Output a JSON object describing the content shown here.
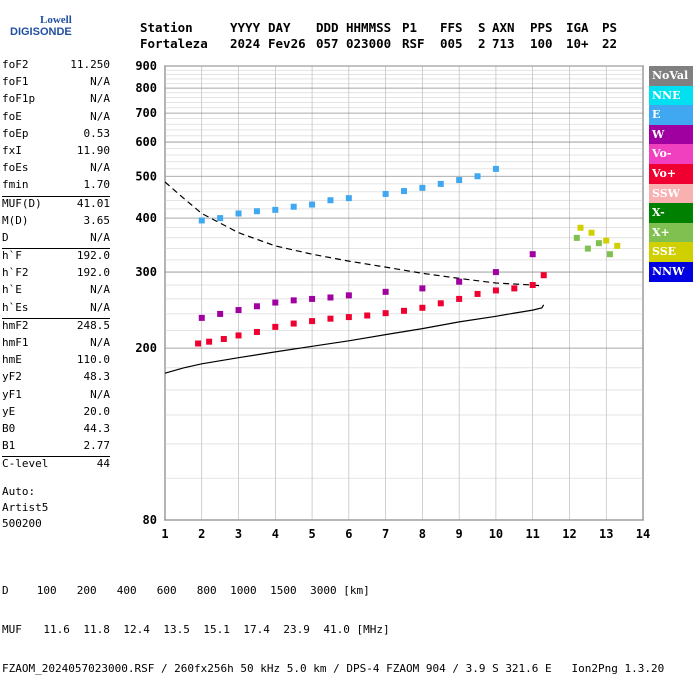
{
  "logo": {
    "line1": "Lowell",
    "line2": "DIGISONDE"
  },
  "header": {
    "labels": [
      "Station",
      "YYYY",
      "DAY",
      "DDD",
      "HHMMSS",
      "P1",
      "FFS",
      "S",
      "AXN",
      "PPS",
      "IGA",
      "PS"
    ],
    "values": [
      "Fortaleza",
      "2024",
      "Fev26",
      "057",
      "023000",
      "RSF",
      "005",
      "2",
      "713",
      "100",
      "10+",
      "22"
    ]
  },
  "params": [
    [
      {
        "k": "foF2",
        "v": "11.250"
      },
      {
        "k": "foF1",
        "v": "N/A"
      },
      {
        "k": "foF1p",
        "v": "N/A"
      },
      {
        "k": "foE",
        "v": "N/A"
      },
      {
        "k": "foEp",
        "v": "0.53"
      },
      {
        "k": "fxI",
        "v": "11.90"
      },
      {
        "k": "foEs",
        "v": "N/A"
      },
      {
        "k": "fmin",
        "v": "1.70"
      }
    ],
    [
      {
        "k": "MUF(D)",
        "v": "41.01"
      },
      {
        "k": "M(D)",
        "v": "3.65"
      },
      {
        "k": "D",
        "v": "N/A"
      }
    ],
    [
      {
        "k": "h`F",
        "v": "192.0"
      },
      {
        "k": "h`F2",
        "v": "192.0"
      },
      {
        "k": "h`E",
        "v": "N/A"
      },
      {
        "k": "h`Es",
        "v": "N/A"
      }
    ],
    [
      {
        "k": "hmF2",
        "v": "248.5"
      },
      {
        "k": "hmF1",
        "v": "N/A"
      },
      {
        "k": "hmE",
        "v": "110.0"
      },
      {
        "k": "yF2",
        "v": "48.3"
      },
      {
        "k": "yF1",
        "v": "N/A"
      },
      {
        "k": "yE",
        "v": "20.0"
      },
      {
        "k": "B0",
        "v": "44.3"
      },
      {
        "k": "B1",
        "v": "2.77"
      }
    ],
    [
      {
        "k": "C-level",
        "v": "44"
      }
    ]
  ],
  "autoscale": {
    "line1": "Auto:",
    "line2": "Artist5",
    "line3": "500200"
  },
  "legend": [
    {
      "label": "NoVal",
      "color": "#808080"
    },
    {
      "label": "NNE",
      "color": "#00e0f0"
    },
    {
      "label": "E",
      "color": "#40a8f0"
    },
    {
      "label": "W",
      "color": "#a000a0"
    },
    {
      "label": "Vo-",
      "color": "#f040c0"
    },
    {
      "label": "Vo+",
      "color": "#f00030"
    },
    {
      "label": "SSW",
      "color": "#f8b0b0"
    },
    {
      "label": "X-",
      "color": "#008000"
    },
    {
      "label": "X+",
      "color": "#80c050"
    },
    {
      "label": "SSE",
      "color": "#d0d000"
    },
    {
      "label": "NNW",
      "color": "#0000e0"
    }
  ],
  "chart_data": {
    "type": "scatter",
    "xlabel": "",
    "ylabel": "",
    "xlim": [
      1,
      14
    ],
    "ylim": [
      80,
      900
    ],
    "y_scale": "log",
    "x_ticks": [
      "1",
      "2",
      "3",
      "4",
      "5",
      "6",
      "7",
      "8",
      "9",
      "10",
      "11",
      "12",
      "13",
      "14"
    ],
    "y_ticks": [
      "80",
      "200",
      "300",
      "400",
      "500",
      "600",
      "700",
      "800",
      "900"
    ],
    "grid": true,
    "series": [
      {
        "name": "Vo+",
        "color": "#f00030",
        "x": [
          1.9,
          2.2,
          2.6,
          3.0,
          3.5,
          4.0,
          4.5,
          5.0,
          5.5,
          6.0,
          6.5,
          7.0,
          7.5,
          8.0,
          8.5,
          9.0,
          9.5,
          10.0,
          10.5,
          11.0,
          11.3
        ],
        "y": [
          205,
          207,
          210,
          214,
          218,
          224,
          228,
          231,
          234,
          236,
          238,
          241,
          244,
          248,
          254,
          260,
          267,
          272,
          275,
          280,
          295
        ]
      },
      {
        "name": "W",
        "color": "#a000a0",
        "x": [
          2.0,
          2.5,
          3.0,
          3.5,
          4.0,
          4.5,
          5.0,
          5.5,
          6.0,
          7.0,
          8.0,
          9.0,
          10.0,
          11.0
        ],
        "y": [
          235,
          240,
          245,
          250,
          255,
          258,
          260,
          262,
          265,
          270,
          275,
          285,
          300,
          330
        ]
      },
      {
        "name": "E",
        "color": "#40a8f0",
        "x": [
          2.0,
          2.5,
          3.0,
          3.5,
          4.0,
          4.5,
          5.0,
          5.5,
          6.0,
          7.0,
          7.5,
          8.0,
          8.5,
          9.0,
          9.5,
          10.0
        ],
        "y": [
          395,
          400,
          410,
          415,
          418,
          425,
          430,
          440,
          445,
          455,
          462,
          470,
          480,
          490,
          500,
          520
        ]
      },
      {
        "name": "X+",
        "color": "#80c050",
        "x": [
          12.2,
          12.5,
          12.8,
          13.1
        ],
        "y": [
          360,
          340,
          350,
          330
        ]
      },
      {
        "name": "SSE",
        "color": "#d0d000",
        "x": [
          12.3,
          12.6,
          13.0,
          13.3
        ],
        "y": [
          380,
          370,
          355,
          345
        ]
      }
    ],
    "profile_solid": {
      "x": [
        1.0,
        1.5,
        2.0,
        3.0,
        4.0,
        5.0,
        6.0,
        7.0,
        8.0,
        9.0,
        10.0,
        10.5,
        11.0,
        11.25,
        11.3
      ],
      "y": [
        175,
        180,
        184,
        190,
        196,
        202,
        208,
        215,
        222,
        230,
        237,
        241,
        245,
        248,
        252
      ]
    },
    "profile_dashed": {
      "x": [
        1.0,
        1.5,
        2.0,
        3.0,
        4.0,
        5.0,
        6.0,
        7.0,
        8.0,
        9.0,
        10.0,
        11.0,
        11.2
      ],
      "y": [
        485,
        445,
        410,
        370,
        345,
        330,
        318,
        308,
        298,
        290,
        283,
        280,
        279
      ]
    }
  },
  "footer": {
    "d_label": "D",
    "d_values": [
      "100",
      "200",
      "400",
      "600",
      "800",
      "1000",
      "1500",
      "3000"
    ],
    "d_unit": "[km]",
    "muf_label": "MUF",
    "muf_values": [
      "11.6",
      "11.8",
      "12.4",
      "13.5",
      "15.1",
      "17.4",
      "23.9",
      "41.0"
    ],
    "muf_unit": "[MHz]",
    "info": "FZAOM_2024057023000.RSF / 260fx256h 50 kHz 5.0 km / DPS-4 FZAOM 904 / 3.9 S 321.6 E   Ion2Png 1.3.20"
  }
}
